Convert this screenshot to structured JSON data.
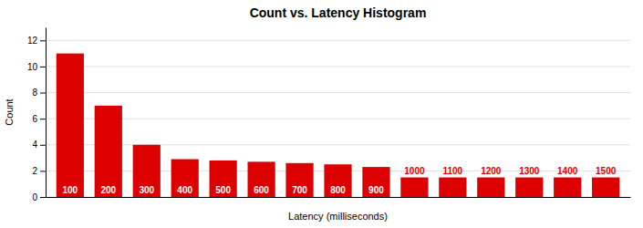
{
  "chart_data": {
    "type": "bar",
    "title": "Count vs. Latency Histogram",
    "xlabel": "Latency (milliseconds)",
    "ylabel": "Count",
    "categories": [
      100,
      200,
      300,
      400,
      500,
      600,
      700,
      800,
      900,
      1000,
      1100,
      1200,
      1300,
      1400,
      1500
    ],
    "values": [
      11.0,
      7.0,
      4.0,
      2.9,
      2.8,
      2.7,
      2.6,
      2.5,
      2.3,
      1.5,
      1.5,
      1.5,
      1.5,
      1.5,
      1.5
    ],
    "color": "#dd0000",
    "ylim": [
      0,
      13
    ],
    "yticks": [
      0,
      2,
      4,
      6,
      8,
      10,
      12
    ],
    "grid": true,
    "tick_labels": "y"
  }
}
